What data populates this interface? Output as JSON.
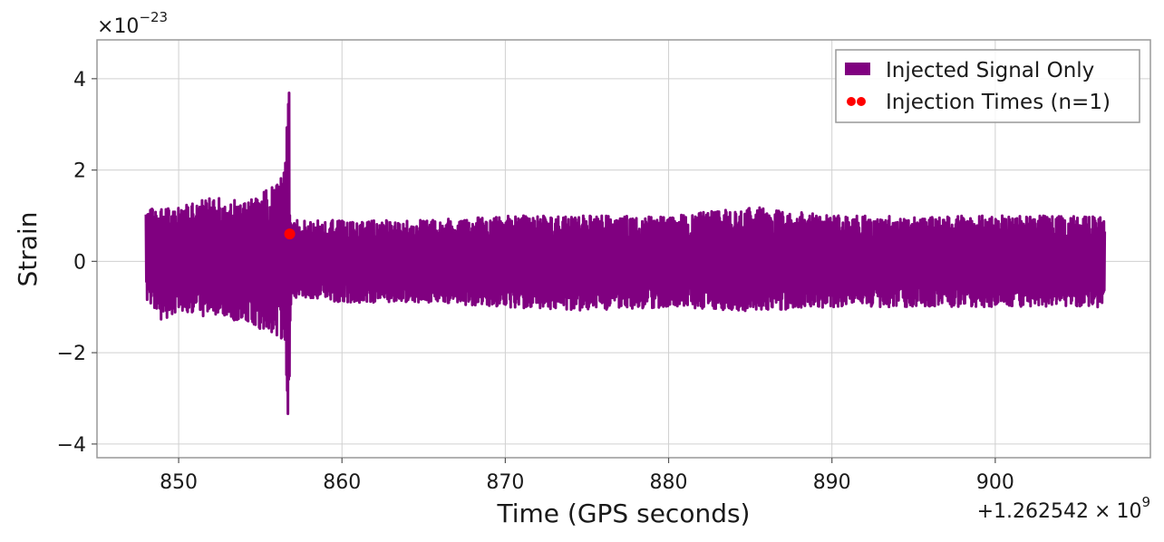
{
  "chart_data": {
    "type": "line",
    "title": "",
    "xlabel": "Time (GPS seconds)",
    "ylabel": "Strain",
    "x_offset_label": "+1.262542",
    "x_offset_times": "×",
    "x_offset_base": "10",
    "x_offset_exp": "9",
    "y_scale_times": "×",
    "y_scale_base": "10",
    "y_scale_exp": "−23",
    "xlim": [
      845,
      909.5
    ],
    "ylim": [
      -4.3,
      4.85
    ],
    "x_ticks": [
      850,
      860,
      870,
      880,
      890,
      900
    ],
    "x_tick_labels": [
      "850",
      "860",
      "870",
      "880",
      "890",
      "900"
    ],
    "y_ticks": [
      -4,
      -2,
      0,
      2,
      4
    ],
    "y_tick_labels": [
      "−4",
      "−2",
      "0",
      "2",
      "4"
    ],
    "grid": true,
    "legend_position": "top-right",
    "series": [
      {
        "name": "Injected Signal Only",
        "kind": "line",
        "color": "#800080",
        "x": [
          848.0,
          849.0,
          850.0,
          851.0,
          852.0,
          853.0,
          854.0,
          855.0,
          856.0,
          856.5,
          856.75,
          856.85,
          857.0,
          858.0,
          860.0,
          865.0,
          870.0,
          875.0,
          880.0,
          885.0,
          890.0,
          895.0,
          900.0,
          905.0,
          906.7
        ],
        "envelope_upper": [
          1.1,
          1.3,
          1.2,
          1.3,
          1.4,
          1.4,
          1.3,
          1.5,
          1.8,
          2.0,
          4.4,
          1.0,
          0.9,
          0.9,
          0.9,
          0.9,
          1.0,
          1.0,
          1.0,
          1.2,
          1.0,
          1.0,
          1.0,
          1.0,
          1.0
        ],
        "envelope_lower": [
          -1.0,
          -1.3,
          -1.1,
          -1.2,
          -1.2,
          -1.3,
          -1.3,
          -1.5,
          -1.7,
          -1.8,
          -3.9,
          -1.0,
          -0.8,
          -0.8,
          -0.9,
          -0.9,
          -1.0,
          -1.1,
          -1.0,
          -1.1,
          -1.0,
          -1.0,
          -1.0,
          -1.0,
          -1.0
        ]
      },
      {
        "name": "Injection Times (n=1)",
        "kind": "scatter",
        "color": "#ff0000",
        "x": [
          856.8
        ],
        "y": [
          0.6
        ]
      }
    ]
  }
}
